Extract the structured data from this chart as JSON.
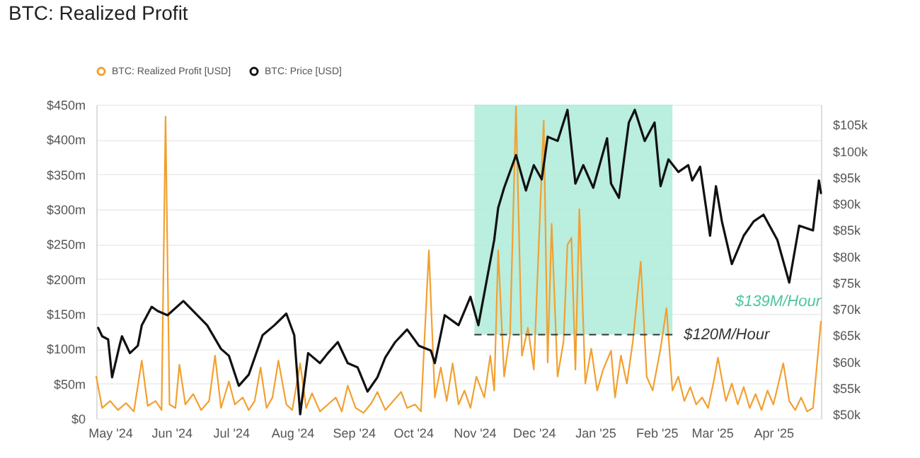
{
  "chart_data": {
    "type": "line",
    "title": "BTC: Realized Profit",
    "xlim": [
      "2024-04-24",
      "2025-04-25"
    ],
    "xticks": [
      {
        "value": "2024-05-01",
        "label": "May '24"
      },
      {
        "value": "2024-06-01",
        "label": "Jun '24"
      },
      {
        "value": "2024-07-01",
        "label": "Jul '24"
      },
      {
        "value": "2024-08-01",
        "label": "Aug '24"
      },
      {
        "value": "2024-09-01",
        "label": "Sep '24"
      },
      {
        "value": "2024-10-01",
        "label": "Oct '24"
      },
      {
        "value": "2024-11-01",
        "label": "Nov '24"
      },
      {
        "value": "2024-12-01",
        "label": "Dec '24"
      },
      {
        "value": "2025-01-01",
        "label": "Jan '25"
      },
      {
        "value": "2025-02-01",
        "label": "Feb '25"
      },
      {
        "value": "2025-03-01",
        "label": "Mar '25"
      },
      {
        "value": "2025-04-01",
        "label": "Apr '25"
      }
    ],
    "ylim": [
      0,
      450
    ],
    "yticks": [
      {
        "value": 0,
        "label": "$0"
      },
      {
        "value": 50,
        "label": "$50m"
      },
      {
        "value": 100,
        "label": "$100m"
      },
      {
        "value": 150,
        "label": "$150m"
      },
      {
        "value": 200,
        "label": "$200m"
      },
      {
        "value": 250,
        "label": "$250m"
      },
      {
        "value": 300,
        "label": "$300m"
      },
      {
        "value": 350,
        "label": "$350m"
      },
      {
        "value": 400,
        "label": "$400m"
      },
      {
        "value": 450,
        "label": "$450m"
      }
    ],
    "y2lim": [
      49.2,
      108.8
    ],
    "y2ticks": [
      {
        "value": 50,
        "label": "$50k"
      },
      {
        "value": 55,
        "label": "$55k"
      },
      {
        "value": 60,
        "label": "$60k"
      },
      {
        "value": 65,
        "label": "$65k"
      },
      {
        "value": 70,
        "label": "$70k"
      },
      {
        "value": 75,
        "label": "$75k"
      },
      {
        "value": 80,
        "label": "$80k"
      },
      {
        "value": 85,
        "label": "$85k"
      },
      {
        "value": 90,
        "label": "$90k"
      },
      {
        "value": 95,
        "label": "$95k"
      },
      {
        "value": 100,
        "label": "$100k"
      },
      {
        "value": 105,
        "label": "$105k"
      }
    ],
    "grid": "y",
    "legend": "top left",
    "marker": "none",
    "line_style": "solid",
    "bands": [
      {
        "axis": "x",
        "from": "2024-11-01",
        "to": "2025-02-09",
        "color": "#aeebd9"
      }
    ],
    "ref_lines": [
      {
        "axis": "y",
        "value": 120,
        "label": "$120M/Hour",
        "line_style": "dashed",
        "color": "#333333"
      }
    ],
    "annotations": [
      {
        "text": "$139M/Hour",
        "x": "2025-04-25",
        "y": 139
      }
    ],
    "series": [
      {
        "name": "BTC: Realized Profit [USD]",
        "color": "#f2a030",
        "x": [
          "2024-04-24",
          "2024-04-27",
          "2024-05-01",
          "2024-05-05",
          "2024-05-09",
          "2024-05-13",
          "2024-05-17",
          "2024-05-20",
          "2024-05-24",
          "2024-05-27",
          "2024-05-29",
          "2024-05-31",
          "2024-06-03",
          "2024-06-05",
          "2024-06-08",
          "2024-06-12",
          "2024-06-16",
          "2024-06-20",
          "2024-06-23",
          "2024-06-26",
          "2024-06-30",
          "2024-07-03",
          "2024-07-07",
          "2024-07-10",
          "2024-07-13",
          "2024-07-16",
          "2024-07-19",
          "2024-07-22",
          "2024-07-25",
          "2024-07-29",
          "2024-08-01",
          "2024-08-05",
          "2024-08-08",
          "2024-08-11",
          "2024-08-15",
          "2024-08-19",
          "2024-08-23",
          "2024-08-26",
          "2024-08-29",
          "2024-09-02",
          "2024-09-06",
          "2024-09-10",
          "2024-09-13",
          "2024-09-17",
          "2024-09-21",
          "2024-09-25",
          "2024-09-28",
          "2024-10-02",
          "2024-10-05",
          "2024-10-09",
          "2024-10-12",
          "2024-10-15",
          "2024-10-18",
          "2024-10-21",
          "2024-10-24",
          "2024-10-27",
          "2024-10-30",
          "2024-11-02",
          "2024-11-06",
          "2024-11-09",
          "2024-11-11",
          "2024-11-13",
          "2024-11-16",
          "2024-11-19",
          "2024-11-22",
          "2024-11-25",
          "2024-11-28",
          "2024-12-01",
          "2024-12-06",
          "2024-12-08",
          "2024-12-10",
          "2024-12-13",
          "2024-12-16",
          "2024-12-18",
          "2024-12-20",
          "2024-12-22",
          "2024-12-24",
          "2024-12-27",
          "2024-12-30",
          "2025-01-02",
          "2025-01-05",
          "2025-01-09",
          "2025-01-11",
          "2025-01-14",
          "2025-01-17",
          "2025-01-20",
          "2025-01-24",
          "2025-01-27",
          "2025-01-30",
          "2025-02-03",
          "2025-02-06",
          "2025-02-09",
          "2025-02-12",
          "2025-02-15",
          "2025-02-18",
          "2025-02-21",
          "2025-02-24",
          "2025-02-27",
          "2025-03-02",
          "2025-03-04",
          "2025-03-08",
          "2025-03-11",
          "2025-03-14",
          "2025-03-17",
          "2025-03-20",
          "2025-03-23",
          "2025-03-26",
          "2025-03-29",
          "2025-04-01",
          "2025-04-06",
          "2025-04-09",
          "2025-04-12",
          "2025-04-15",
          "2025-04-18",
          "2025-04-21",
          "2025-04-25"
        ],
        "values": [
          60,
          15,
          25,
          12,
          22,
          10,
          83,
          18,
          25,
          12,
          433,
          20,
          15,
          77,
          20,
          35,
          12,
          25,
          90,
          15,
          53,
          20,
          30,
          12,
          25,
          73,
          15,
          30,
          83,
          20,
          12,
          79,
          15,
          36,
          10,
          20,
          30,
          10,
          47,
          15,
          8,
          22,
          38,
          12,
          25,
          38,
          15,
          20,
          10,
          241,
          30,
          73,
          25,
          79,
          20,
          40,
          15,
          60,
          30,
          90,
          40,
          241,
          60,
          120,
          447,
          90,
          130,
          70,
          427,
          80,
          279,
          60,
          110,
          249,
          259,
          70,
          300,
          50,
          100,
          40,
          70,
          97,
          30,
          90,
          50,
          110,
          225,
          60,
          40,
          100,
          158,
          40,
          60,
          25,
          45,
          20,
          30,
          15,
          55,
          87,
          25,
          50,
          20,
          45,
          15,
          35,
          12,
          40,
          20,
          79,
          25,
          12,
          30,
          10,
          15,
          139
        ]
      },
      {
        "name": "BTC: Price [USD]",
        "color": "#111111",
        "axis": "y2",
        "x": [
          "2024-04-25",
          "2024-04-27",
          "2024-04-30",
          "2024-05-02",
          "2024-05-06",
          "2024-05-07",
          "2024-05-11",
          "2024-05-15",
          "2024-05-17",
          "2024-05-22",
          "2024-05-25",
          "2024-05-30",
          "2024-06-07",
          "2024-06-12",
          "2024-06-19",
          "2024-06-26",
          "2024-06-30",
          "2024-07-05",
          "2024-07-10",
          "2024-07-17",
          "2024-07-23",
          "2024-07-29",
          "2024-08-02",
          "2024-08-05",
          "2024-08-09",
          "2024-08-15",
          "2024-08-19",
          "2024-08-24",
          "2024-08-29",
          "2024-09-03",
          "2024-09-08",
          "2024-09-13",
          "2024-09-17",
          "2024-09-22",
          "2024-09-28",
          "2024-10-04",
          "2024-10-10",
          "2024-10-12",
          "2024-10-17",
          "2024-10-24",
          "2024-10-30",
          "2024-11-03",
          "2024-11-07",
          "2024-11-11",
          "2024-11-13",
          "2024-11-16",
          "2024-11-22",
          "2024-11-27",
          "2024-12-01",
          "2024-12-05",
          "2024-12-08",
          "2024-12-13",
          "2024-12-18",
          "2024-12-22",
          "2024-12-26",
          "2024-12-31",
          "2025-01-07",
          "2025-01-09",
          "2025-01-13",
          "2025-01-18",
          "2025-01-21",
          "2025-01-26",
          "2025-01-31",
          "2025-02-03",
          "2025-02-07",
          "2025-02-12",
          "2025-02-17",
          "2025-02-19",
          "2025-02-23",
          "2025-02-26",
          "2025-02-28",
          "2025-03-03",
          "2025-03-06",
          "2025-03-11",
          "2025-03-17",
          "2025-03-22",
          "2025-03-27",
          "2025-04-03",
          "2025-04-09",
          "2025-04-14",
          "2025-04-21",
          "2025-04-24",
          "2025-04-25"
        ],
        "values": [
          66.4,
          64.8,
          64.2,
          57.0,
          63.4,
          64.8,
          61.6,
          63.0,
          66.9,
          70.4,
          69.6,
          68.8,
          71.5,
          69.6,
          66.9,
          62.4,
          61.1,
          55.4,
          57.5,
          65.0,
          66.9,
          69.1,
          65.0,
          50.0,
          61.6,
          59.7,
          61.6,
          63.7,
          59.7,
          58.9,
          54.3,
          57.0,
          60.8,
          63.7,
          66.1,
          63.0,
          62.1,
          59.7,
          68.8,
          66.9,
          72.3,
          66.9,
          75.0,
          83.1,
          89.2,
          93.0,
          99.2,
          92.5,
          97.3,
          94.6,
          102.7,
          101.9,
          107.8,
          93.8,
          97.3,
          93.0,
          102.4,
          93.8,
          91.1,
          105.4,
          107.8,
          101.9,
          105.4,
          93.3,
          98.4,
          96.0,
          97.3,
          94.4,
          97.0,
          89.2,
          83.9,
          93.3,
          86.6,
          78.5,
          83.9,
          86.6,
          87.9,
          83.1,
          75.0,
          85.8,
          84.9,
          94.4,
          92.0
        ]
      }
    ]
  }
}
